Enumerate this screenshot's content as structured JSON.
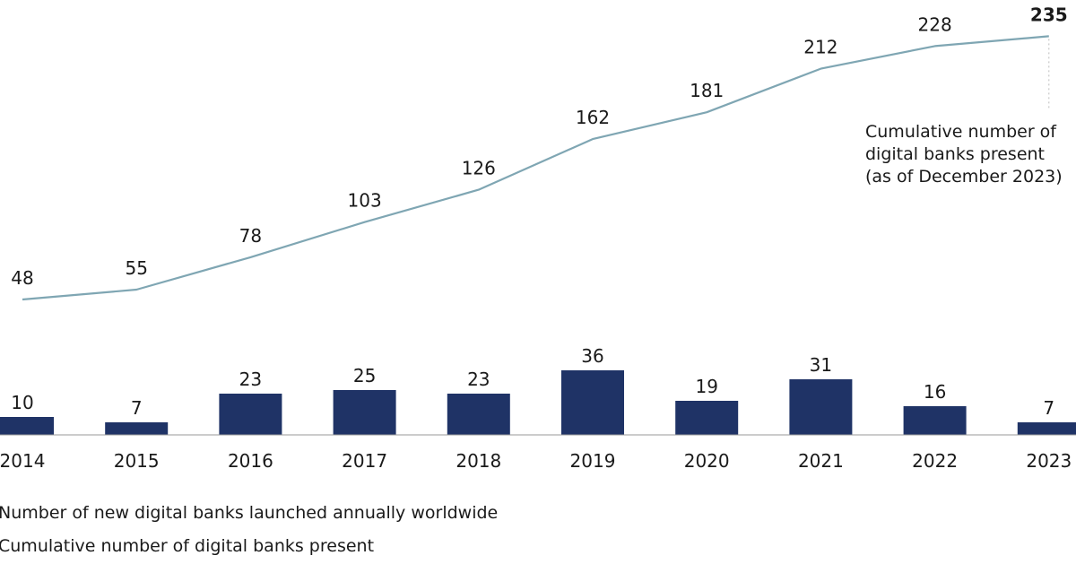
{
  "chart_data": {
    "type": "bar+line",
    "categories": [
      "2014",
      "2015",
      "2016",
      "2017",
      "2018",
      "2019",
      "2020",
      "2021",
      "2022",
      "2023"
    ],
    "series": [
      {
        "name": "Number of new digital banks launched annually worldwide",
        "type": "bar",
        "values": [
          10,
          7,
          23,
          25,
          23,
          36,
          19,
          31,
          16,
          7
        ]
      },
      {
        "name": "Cumulative number of digital banks present",
        "type": "line",
        "values": [
          48,
          55,
          78,
          103,
          126,
          162,
          181,
          212,
          228,
          235
        ]
      }
    ],
    "annotation": {
      "lines": [
        "Cumulative number of",
        "digital banks present",
        "(as of December 2023)"
      ]
    },
    "colors": {
      "bar": "#1f3366",
      "line": "#7fa6b3",
      "text": "#1a1a1a",
      "axis": "#9a9a9a"
    },
    "legend_position": "bottom-left"
  }
}
